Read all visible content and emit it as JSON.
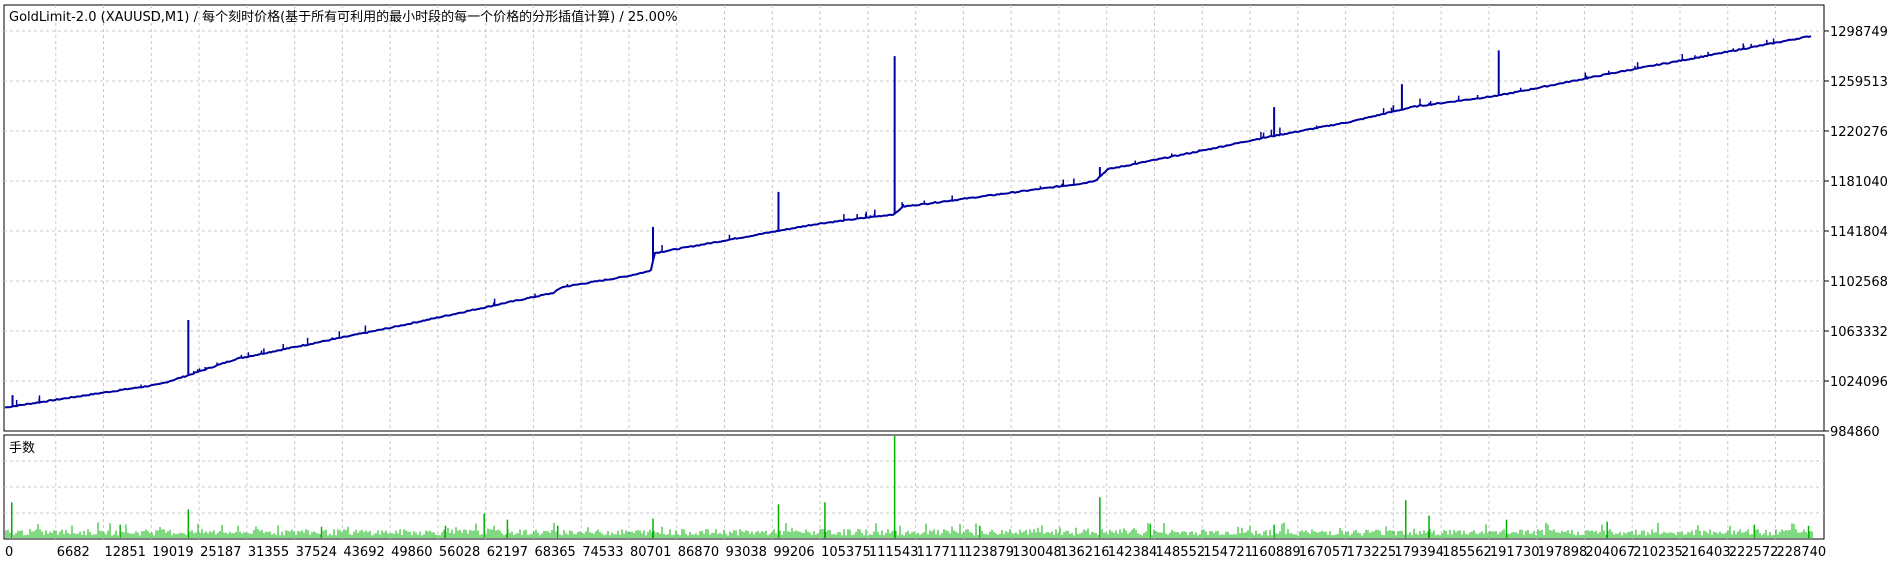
{
  "title": "GoldLimit-2.0 (XAUUSD,M1) / 每个刻时价格(基于所有可利用的最小时段的每一个价格的分形插值计算) / 25.00%",
  "colors": {
    "background": "#ffffff",
    "frame": "#000000",
    "grid": "#c8c8c8",
    "balance_line": "#0000a0",
    "volume_bars": "#00b000",
    "text": "#000000"
  },
  "chart_data": [
    {
      "type": "line",
      "title": "GoldLimit-2.0 (XAUUSD,M1) / 每个刻时价格(基于所有可利用的最小时段的每一个价格的分形插值计算) / 25.00%",
      "xlabel": "",
      "ylabel": "",
      "ylim": [
        984860,
        1319120
      ],
      "xlim": [
        0,
        235000
      ],
      "grid": true,
      "y_ticks": [
        "1298749",
        "1259513",
        "1220276",
        "1181040",
        "1141804",
        "1102568",
        "1063332",
        "1024096",
        "984860"
      ],
      "x_ticks": [
        "0",
        "6682",
        "12851",
        "19019",
        "25187",
        "31355",
        "37524",
        "43692",
        "49860",
        "56028",
        "62197",
        "68365",
        "74533",
        "80701",
        "86870",
        "93038",
        "99206",
        "105375",
        "111543",
        "117711",
        "123879",
        "130048",
        "136216",
        "142384",
        "148552",
        "154721",
        "160889",
        "167057",
        "173225",
        "179394",
        "185562",
        "191730",
        "197898",
        "204067",
        "210235",
        "216403",
        "222572",
        "228740"
      ],
      "x_tick_values": [
        0,
        6682,
        12851,
        19019,
        25187,
        31355,
        37524,
        43692,
        49860,
        56028,
        62197,
        68365,
        74533,
        80701,
        86870,
        93038,
        99206,
        105375,
        111543,
        117711,
        123879,
        130048,
        136216,
        142384,
        148552,
        154721,
        160889,
        167057,
        173225,
        179394,
        185562,
        191730,
        197898,
        204067,
        210235,
        216403,
        222572,
        228740
      ],
      "series": [
        {
          "x": [
            0,
            10000,
            20000,
            23500,
            30000,
            50000,
            65000,
            71000,
            72000,
            80000,
            83500,
            84000,
            90000,
            105000,
            115000,
            116000,
            130000,
            139500,
            141000,
            142500,
            155000,
            162000,
            174000,
            182000,
            193000,
            200000,
            209000,
            220000,
            235000
          ],
          "y": [
            1003200,
            1012400,
            1021400,
            1028000,
            1041500,
            1066000,
            1085700,
            1093300,
            1097700,
            1105800,
            1110500,
            1124500,
            1131000,
            1147400,
            1155000,
            1160800,
            1171800,
            1179400,
            1181700,
            1190200,
            1205200,
            1214200,
            1227700,
            1239300,
            1248100,
            1256400,
            1267200,
            1279400,
            1296700
          ]
        }
      ],
      "spikes": [
        {
          "x": 1100,
          "y": 1013000
        },
        {
          "x": 23800,
          "y": 1072000
        },
        {
          "x": 26000,
          "y": 1035000
        },
        {
          "x": 15000,
          "y": 1018000
        },
        {
          "x": 83800,
          "y": 1145000
        },
        {
          "x": 100000,
          "y": 1172500
        },
        {
          "x": 105000,
          "y": 1146500
        },
        {
          "x": 115000,
          "y": 1279000
        },
        {
          "x": 141500,
          "y": 1192000
        },
        {
          "x": 164000,
          "y": 1239000
        },
        {
          "x": 180500,
          "y": 1257000
        },
        {
          "x": 193000,
          "y": 1283500
        }
      ]
    },
    {
      "type": "bar",
      "title": "手数",
      "xlabel": "",
      "ylabel": "",
      "ylim": [
        0,
        1
      ],
      "bars": 600,
      "base_height": 0.07,
      "peaks": [
        {
          "x": 1000,
          "value": 0.35
        },
        {
          "x": 15000,
          "value": 0.13
        },
        {
          "x": 23800,
          "value": 0.28
        },
        {
          "x": 41000,
          "value": 0.11
        },
        {
          "x": 57000,
          "value": 0.12
        },
        {
          "x": 62000,
          "value": 0.24
        },
        {
          "x": 65000,
          "value": 0.18
        },
        {
          "x": 71500,
          "value": 0.12
        },
        {
          "x": 83800,
          "value": 0.19
        },
        {
          "x": 100000,
          "value": 0.33
        },
        {
          "x": 106000,
          "value": 0.35
        },
        {
          "x": 115000,
          "value": 1.0
        },
        {
          "x": 126000,
          "value": 0.12
        },
        {
          "x": 141500,
          "value": 0.4
        },
        {
          "x": 148000,
          "value": 0.14
        },
        {
          "x": 164000,
          "value": 0.13
        },
        {
          "x": 181000,
          "value": 0.37
        },
        {
          "x": 184000,
          "value": 0.22
        },
        {
          "x": 194000,
          "value": 0.18
        },
        {
          "x": 207000,
          "value": 0.16
        },
        {
          "x": 226000,
          "value": 0.13
        },
        {
          "x": 233000,
          "value": 0.12
        }
      ]
    }
  ]
}
